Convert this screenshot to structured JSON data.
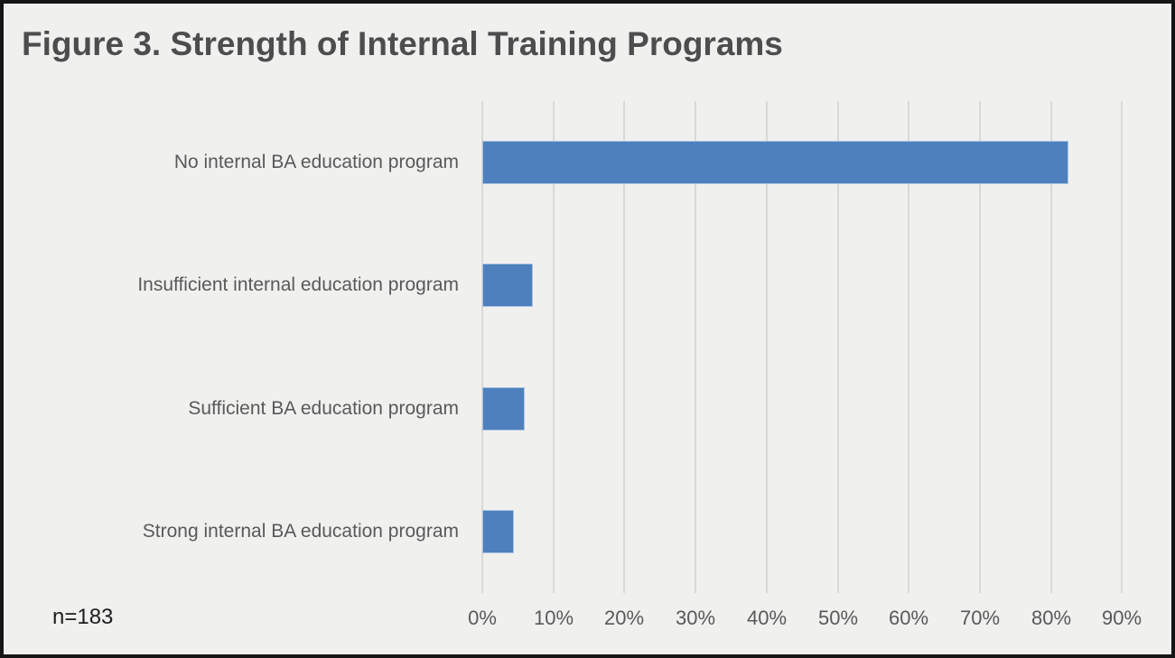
{
  "title": "Figure 3. Strength of Internal Training Programs",
  "footnote": "n=183",
  "colors": {
    "bar": "#4d80bd",
    "bar_border": "#a9c2e2",
    "background": "#f0f0ef",
    "frame": "#161616",
    "gridline": "#d9d9d6",
    "title_text": "#4d4d4d",
    "label_text": "#595959"
  },
  "chart_data": {
    "type": "bar",
    "orientation": "horizontal",
    "title": "Figure 3. Strength of Internal Training Programs",
    "categories": [
      "No internal BA education program",
      "Insufficient internal education program",
      "Sufficient BA education program",
      "Strong internal BA education program"
    ],
    "values": [
      82.5,
      7.1,
      6.0,
      4.4
    ],
    "unit": "%",
    "xlabel": "",
    "ylabel": "",
    "xlim": [
      0,
      93
    ],
    "x_ticks": [
      "0%",
      "10%",
      "20%",
      "30%",
      "40%",
      "50%",
      "60%",
      "70%",
      "80%",
      "90%"
    ],
    "x_tick_values": [
      0,
      10,
      20,
      30,
      40,
      50,
      60,
      70,
      80,
      90
    ],
    "grid": "vertical",
    "legend": "none",
    "sample_note": "n=183"
  }
}
